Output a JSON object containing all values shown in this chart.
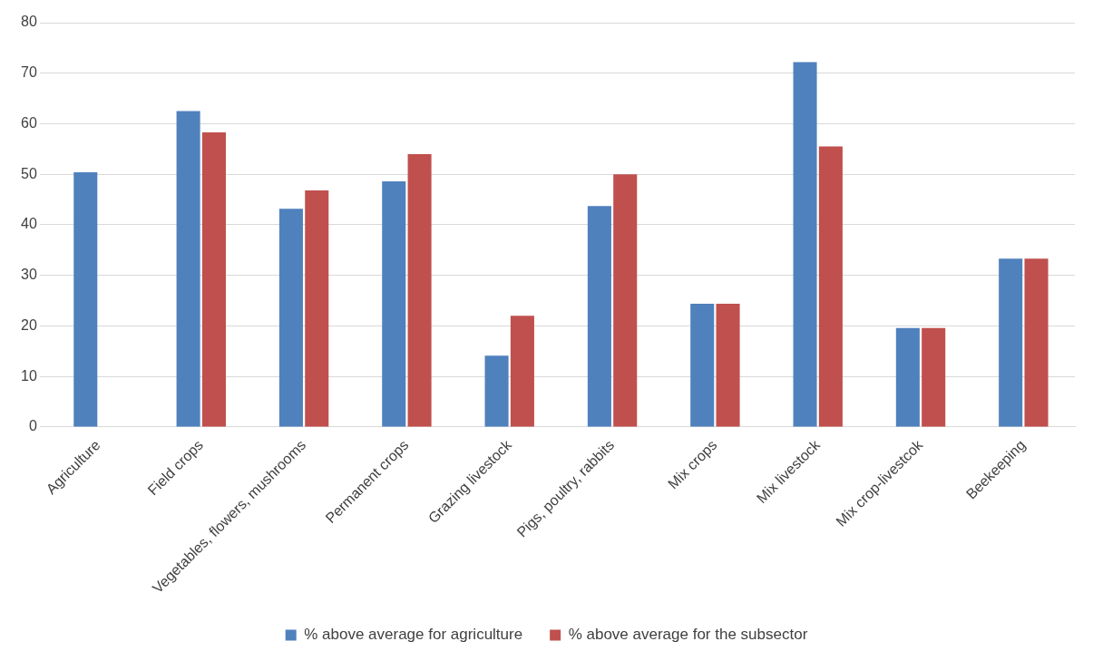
{
  "chart_data": {
    "type": "bar",
    "categories": [
      "Agriculture",
      "Field crops",
      "Vegetables, flowers, mushrooms",
      "Permanent crops",
      "Grazing livestock",
      "Pigs, poultry, rabbits",
      "Mix crops",
      "Mix livestock",
      "Mix crop-livestcok",
      "Beekeeping"
    ],
    "series": [
      {
        "name": "% above average for agriculture",
        "color": "#4f81bd",
        "values": [
          50.4,
          62.5,
          43.2,
          48.6,
          14.1,
          43.7,
          24.4,
          72.2,
          19.6,
          33.3
        ]
      },
      {
        "name": "% above average for the subsector",
        "color": "#c0504d",
        "values": [
          null,
          58.3,
          46.8,
          54.0,
          22.0,
          50.0,
          24.4,
          55.5,
          19.6,
          33.3
        ]
      }
    ],
    "ylim": [
      0,
      80
    ],
    "yticks": [
      0,
      10,
      20,
      30,
      40,
      50,
      60,
      70,
      80
    ],
    "grid": "y",
    "legend": "bottom"
  }
}
